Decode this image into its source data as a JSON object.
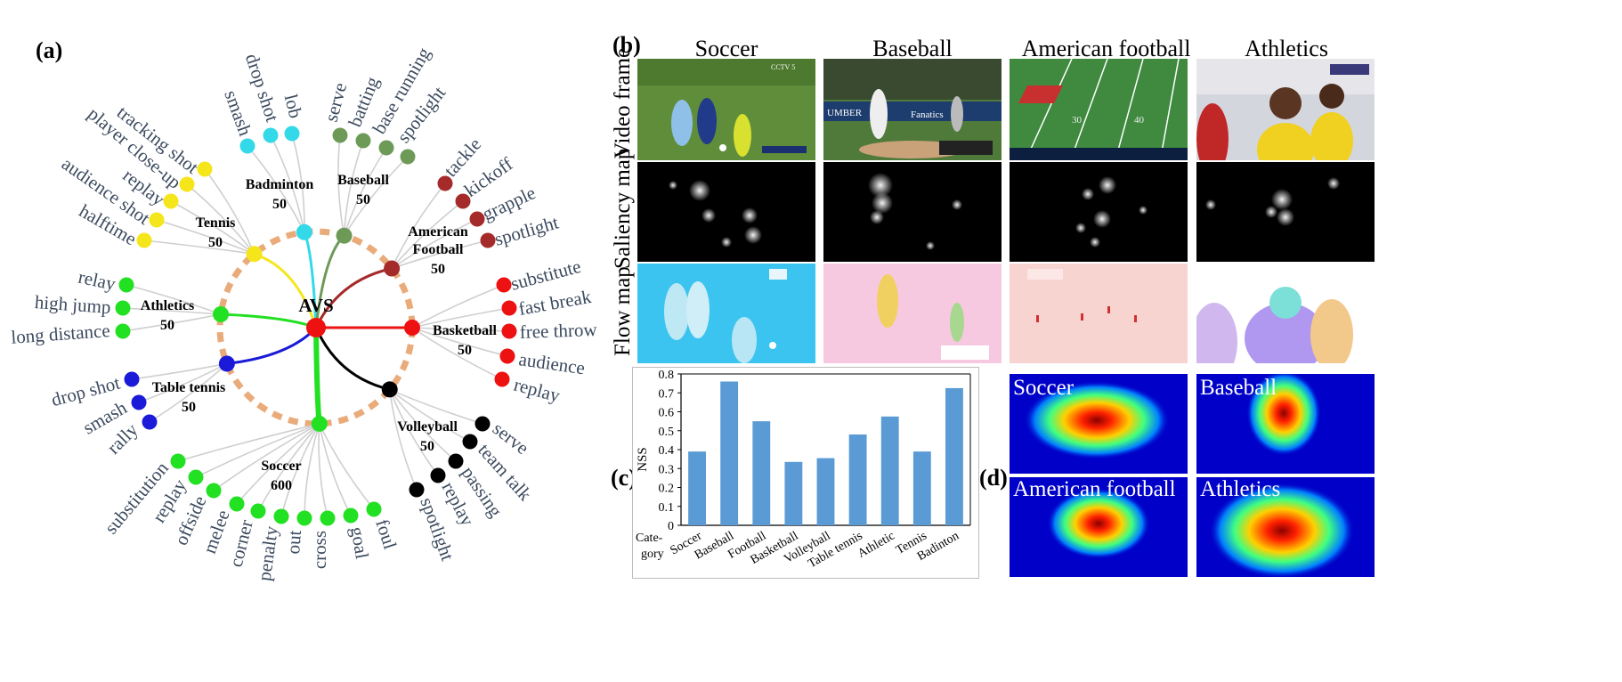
{
  "panels": {
    "a": "(a)",
    "b": "(b)",
    "c": "(c)",
    "d": "(d)"
  },
  "tree": {
    "root": "AVS",
    "categories": [
      {
        "name": "Badminton",
        "count": "50",
        "color": "#33d9e8",
        "leaves": [
          "smash",
          "drop shot",
          "lob"
        ]
      },
      {
        "name": "Baseball",
        "count": "50",
        "color": "#6e9a58",
        "leaves": [
          "serve",
          "batting",
          "base running",
          "spotlight"
        ]
      },
      {
        "name": "American Football",
        "count": "50",
        "color": "#a52a2a",
        "leaves": [
          "tackle",
          "kickoff",
          "grapple",
          "spotlight"
        ]
      },
      {
        "name": "Basketball",
        "count": "50",
        "color": "#ee1111",
        "leaves": [
          "substitute",
          "fast break",
          "free throw",
          "audience",
          "replay"
        ]
      },
      {
        "name": "Volleyball",
        "count": "50",
        "color": "#000000",
        "leaves": [
          "serve",
          "team talk",
          "passing",
          "replay",
          "spotlight"
        ]
      },
      {
        "name": "Soccer",
        "count": "600",
        "color": "#22e022",
        "leaves": [
          "substitution",
          "replay",
          "offside",
          "melee",
          "corner",
          "penalty",
          "out",
          "cross",
          "goal",
          "foul"
        ]
      },
      {
        "name": "Table tennis",
        "count": "50",
        "color": "#1a1ad8",
        "leaves": [
          "drop shot",
          "smash",
          "rally"
        ]
      },
      {
        "name": "Athletics",
        "count": "50",
        "color": "#22e022",
        "leaves": [
          "relay",
          "high jump",
          "long distance"
        ]
      },
      {
        "name": "Tennis",
        "count": "50",
        "color": "#f5e61b",
        "leaves": [
          "tracking shot",
          "player close-up",
          "replay",
          "audience shot",
          "halftime"
        ]
      }
    ]
  },
  "grid_b": {
    "columns": [
      "Soccer",
      "Baseball",
      "American football",
      "Athletics"
    ],
    "rows": [
      "Video frame",
      "Saliency map",
      "Flow map"
    ]
  },
  "chart_data": {
    "type": "bar",
    "categories": [
      "Soccer",
      "Baseball",
      "Football",
      "Basketball",
      "Volleyball",
      "Table tennis",
      "Athletic",
      "Tennis",
      "Badinton"
    ],
    "values": [
      0.39,
      0.76,
      0.55,
      0.335,
      0.355,
      0.48,
      0.575,
      0.39,
      0.725
    ],
    "ylabel": "NSS",
    "xlabel": "Cate-gory",
    "ylim": [
      0,
      0.8
    ],
    "yticks": [
      "0",
      "0.1",
      "0.2",
      "0.3",
      "0.4",
      "0.5",
      "0.6",
      "0.7",
      "0.8"
    ],
    "bar_color": "#5b9bd5",
    "grid": false
  },
  "heatmaps": [
    "Soccer",
    "Baseball",
    "American football",
    "Athletics"
  ]
}
